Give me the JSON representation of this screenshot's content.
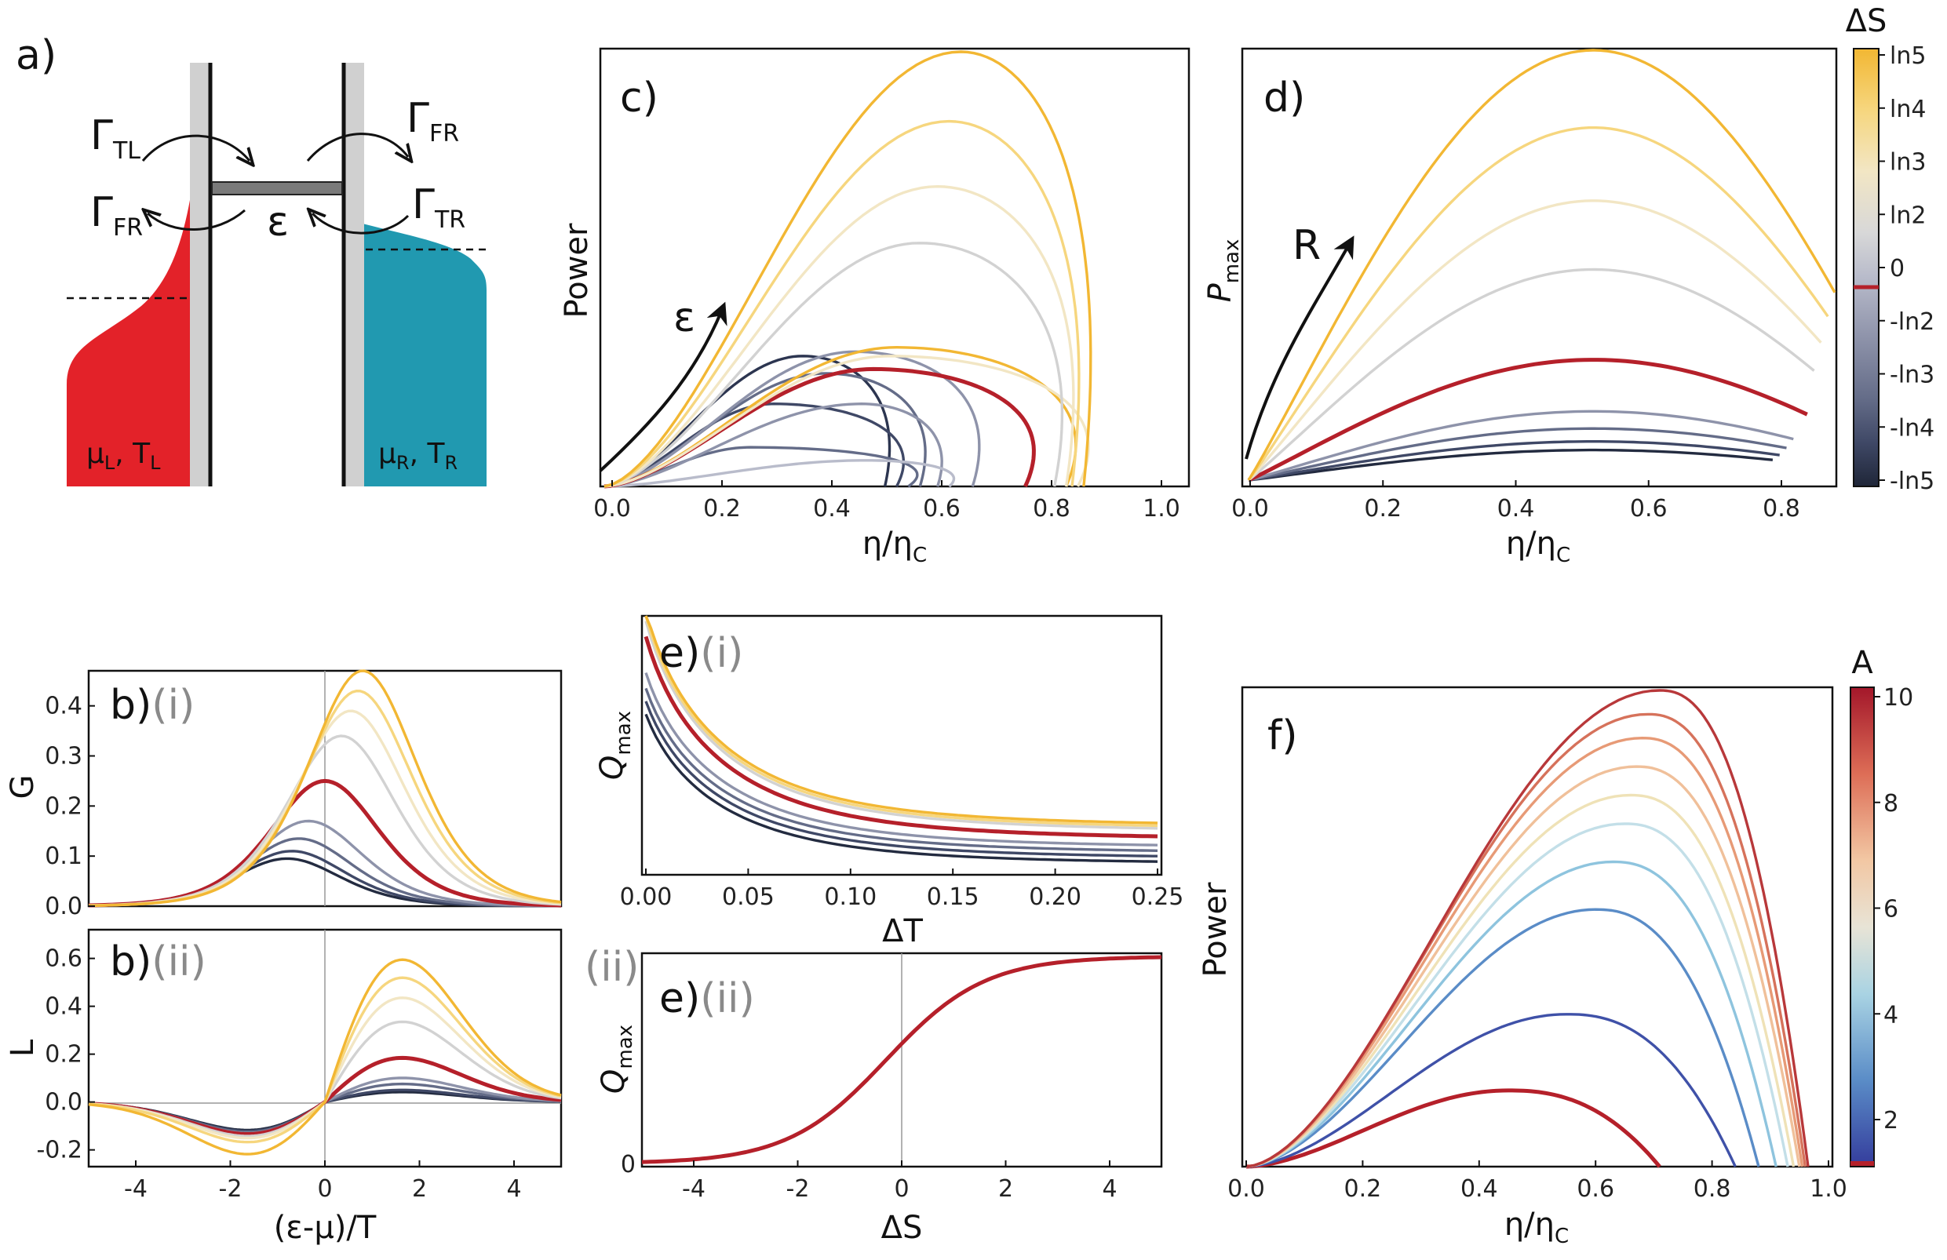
{
  "panels": {
    "a": {
      "label": "a)",
      "rates": {
        "gtl": "Γ",
        "gtl_sub": "TL",
        "gfr_top": "Γ",
        "gfr_top_sub": "FR",
        "gfr_left": "Γ",
        "gfr_left_sub": "FR",
        "gtr": "Γ",
        "gtr_sub": "TR"
      },
      "level": "ε",
      "left_lead": {
        "mu": "μ",
        "mu_sub": "L",
        "T": ", T",
        "T_sub": "L"
      },
      "right_lead": {
        "mu": "μ",
        "mu_sub": "R",
        "T": ", T",
        "T_sub": "R"
      },
      "colors": {
        "left": "#e32229",
        "right": "#2199b0"
      }
    },
    "c": {
      "label": "c)",
      "arrow_label": "ε"
    },
    "d": {
      "label": "d)",
      "arrow_label": "R"
    },
    "bi": {
      "label": "b)",
      "sub": "(i)"
    },
    "bii": {
      "label": "b)",
      "sub": "(ii)"
    },
    "ei": {
      "label": "e)",
      "sub": "(i)"
    },
    "eii": {
      "label": "e)",
      "sub": "(ii)",
      "left_tag": "(ii)"
    },
    "f": {
      "label": "f)"
    }
  },
  "colorbars": {
    "dS": {
      "title": "ΔS",
      "labels": [
        "ln5",
        "ln4",
        "ln3",
        "ln2",
        "0",
        "-ln2",
        "-ln3",
        "-ln4",
        "-ln5"
      ],
      "stops": [
        "#f2b733",
        "#f6d67e",
        "#f2e6c4",
        "#d2d2d2",
        "#b9bccb",
        "#8e93aa",
        "#646c88",
        "#3f4866",
        "#232b40"
      ],
      "marker_color": "#b5202a"
    },
    "A": {
      "title": "A",
      "labels": [
        "10",
        "8",
        "6",
        "4",
        "2"
      ],
      "stops": [
        "#b5202a",
        "#dd6d56",
        "#f2c7a3",
        "#d4e1e4",
        "#8ec4de",
        "#4b73b6",
        "#3a3f9e"
      ],
      "marker_color": "#b5202a"
    }
  },
  "chart_data": [
    {
      "id": "c",
      "type": "line",
      "xlabel": "η/η",
      "xlabel_sub": "C",
      "ylabel": "Power",
      "xlim": [
        0,
        1.0
      ],
      "x_ticks": [
        "0.0",
        "0.2",
        "0.4",
        "0.6",
        "0.8",
        "1.0"
      ],
      "y_ticks": [],
      "series": [
        {
          "color": "#2c3550",
          "apex": [
            0.34,
            0.3
          ],
          "end": [
            0.48,
            0.0
          ]
        },
        {
          "color": "#3f4866",
          "apex": [
            0.29,
            0.19
          ],
          "end": [
            0.5,
            0.0
          ]
        },
        {
          "color": "#646c88",
          "apex": [
            0.25,
            0.09
          ],
          "end": [
            0.52,
            0.0
          ]
        },
        {
          "color": "#646c88",
          "apex": [
            0.38,
            0.26
          ],
          "end": [
            0.54,
            0.0
          ]
        },
        {
          "color": "#8e93aa",
          "apex": [
            0.44,
            0.19
          ],
          "end": [
            0.57,
            0.0
          ]
        },
        {
          "color": "#8e93aa",
          "apex": [
            0.43,
            0.31
          ],
          "end": [
            0.63,
            0.0
          ]
        },
        {
          "color": "#b9bccb",
          "apex": [
            0.45,
            0.06
          ],
          "end": [
            0.59,
            0.0
          ]
        },
        {
          "color": "#b5202a",
          "apex": [
            0.46,
            0.27
          ],
          "end": [
            0.72,
            0.0
          ],
          "highlight": true
        },
        {
          "color": "#f2b733",
          "apex": [
            0.5,
            0.32
          ],
          "end": [
            0.79,
            0.0
          ]
        },
        {
          "color": "#f2e6c4",
          "apex": [
            0.49,
            0.3
          ],
          "end": [
            0.81,
            0.0
          ]
        },
        {
          "color": "#d2d2d2",
          "apex": [
            0.54,
            0.56
          ],
          "end": [
            0.77,
            0.0
          ]
        },
        {
          "color": "#f2e6c4",
          "apex": [
            0.57,
            0.69
          ],
          "end": [
            0.79,
            0.0
          ]
        },
        {
          "color": "#f6d67e",
          "apex": [
            0.59,
            0.84
          ],
          "end": [
            0.8,
            0.0
          ]
        },
        {
          "color": "#f2b733",
          "apex": [
            0.61,
            1.0
          ],
          "end": [
            0.82,
            0.0
          ]
        }
      ]
    },
    {
      "id": "d",
      "type": "line",
      "xlabel": "η/η",
      "xlabel_sub": "C",
      "ylabel": "P",
      "ylabel_sub": "max",
      "xlim": [
        0,
        0.85
      ],
      "x_ticks": [
        "0.0",
        "0.2",
        "0.4",
        "0.6",
        "0.8"
      ],
      "y_ticks": [],
      "series": [
        {
          "color": "#232b40",
          "apex": 0.07,
          "end_x": 0.76
        },
        {
          "color": "#3f4866",
          "apex": 0.09,
          "end_x": 0.77
        },
        {
          "color": "#646c88",
          "apex": 0.12,
          "end_x": 0.78
        },
        {
          "color": "#8e93aa",
          "apex": 0.16,
          "end_x": 0.79
        },
        {
          "color": "#b5202a",
          "apex": 0.28,
          "end_x": 0.81,
          "highlight": true
        },
        {
          "color": "#d2d2d2",
          "apex": 0.49,
          "end_x": 0.82
        },
        {
          "color": "#f2e6c4",
          "apex": 0.65,
          "end_x": 0.83
        },
        {
          "color": "#f6d67e",
          "apex": 0.82,
          "end_x": 0.84
        },
        {
          "color": "#f2b733",
          "apex": 1.0,
          "end_x": 0.85
        }
      ]
    },
    {
      "id": "bi",
      "type": "line",
      "xlabel": "",
      "ylabel": "G",
      "xlim": [
        -5,
        5
      ],
      "ylim": [
        0,
        0.47
      ],
      "y_ticks": [
        "0.0",
        "0.1",
        "0.2",
        "0.3",
        "0.4"
      ],
      "x_ticks": [],
      "series": [
        {
          "color": "#232b40",
          "peak": 0.095,
          "center": -0.8
        },
        {
          "color": "#3f4866",
          "peak": 0.11,
          "center": -0.7
        },
        {
          "color": "#646c88",
          "peak": 0.135,
          "center": -0.55
        },
        {
          "color": "#8e93aa",
          "peak": 0.17,
          "center": -0.35
        },
        {
          "color": "#b5202a",
          "peak": 0.25,
          "center": 0.0,
          "highlight": true
        },
        {
          "color": "#d2d2d2",
          "peak": 0.34,
          "center": 0.35
        },
        {
          "color": "#f2e6c4",
          "peak": 0.39,
          "center": 0.55
        },
        {
          "color": "#f6d67e",
          "peak": 0.43,
          "center": 0.7
        },
        {
          "color": "#f2b733",
          "peak": 0.47,
          "center": 0.8
        }
      ]
    },
    {
      "id": "bii",
      "type": "line",
      "xlabel": "(ε-μ)/T",
      "ylabel": "L",
      "xlim": [
        -5,
        5
      ],
      "ylim": [
        -0.27,
        0.72
      ],
      "x_ticks": [
        "-4",
        "-2",
        "0",
        "2",
        "4"
      ],
      "y_ticks": [
        "-0.2",
        "0.0",
        "0.2",
        "0.4",
        "0.6"
      ],
      "series": [
        {
          "color": "#232b40",
          "pos": 0.05,
          "neg": 0.14
        },
        {
          "color": "#3f4866",
          "pos": 0.06,
          "neg": 0.145
        },
        {
          "color": "#646c88",
          "pos": 0.09,
          "neg": 0.15
        },
        {
          "color": "#8e93aa",
          "pos": 0.12,
          "neg": 0.155
        },
        {
          "color": "#b5202a",
          "pos": 0.22,
          "neg": 0.16,
          "highlight": true
        },
        {
          "color": "#d2d2d2",
          "pos": 0.4,
          "neg": 0.17
        },
        {
          "color": "#f2e6c4",
          "pos": 0.52,
          "neg": 0.18
        },
        {
          "color": "#f6d67e",
          "pos": 0.62,
          "neg": 0.2
        },
        {
          "color": "#f2b733",
          "pos": 0.71,
          "neg": 0.26
        }
      ]
    },
    {
      "id": "ei",
      "type": "line",
      "xlabel": "ΔT",
      "ylabel": "Q",
      "ylabel_sub": "max",
      "xlim": [
        0,
        0.25
      ],
      "x_ticks": [
        "0.00",
        "0.05",
        "0.10",
        "0.15",
        "0.20",
        "0.25"
      ],
      "y_ticks": [],
      "series": [
        {
          "color": "#232b40",
          "start": 0.62,
          "tail": 0.03
        },
        {
          "color": "#3f4866",
          "start": 0.67,
          "tail": 0.05
        },
        {
          "color": "#646c88",
          "start": 0.72,
          "tail": 0.07
        },
        {
          "color": "#8e93aa",
          "start": 0.78,
          "tail": 0.09
        },
        {
          "color": "#b5202a",
          "start": 0.92,
          "tail": 0.12,
          "highlight": true
        },
        {
          "color": "#d2d2d2",
          "start": 0.98,
          "tail": 0.15
        },
        {
          "color": "#f6d67e",
          "start": 1.0,
          "tail": 0.16
        },
        {
          "color": "#f2b733",
          "start": 1.02,
          "tail": 0.17
        }
      ]
    },
    {
      "id": "eii",
      "type": "line",
      "xlabel": "ΔS",
      "ylabel": "Q",
      "ylabel_sub": "max",
      "xlim": [
        -5,
        5
      ],
      "x_ticks": [
        "-4",
        "-2",
        "0",
        "2",
        "4"
      ],
      "y_ticks": [
        "0"
      ],
      "series": [
        {
          "color": "#b5202a",
          "shape": "sigmoid"
        }
      ]
    },
    {
      "id": "f",
      "type": "line",
      "xlabel": "η/η",
      "xlabel_sub": "C",
      "ylabel": "Power",
      "xlim": [
        0,
        1.0
      ],
      "x_ticks": [
        "0.0",
        "0.2",
        "0.4",
        "0.6",
        "0.8",
        "1.0"
      ],
      "y_ticks": [],
      "series": [
        {
          "color": "#b5202a",
          "apex": [
            0.45,
            0.16
          ],
          "end": 0.71,
          "highlight": true
        },
        {
          "color": "#3f51a8",
          "apex": [
            0.55,
            0.32
          ],
          "end": 0.84
        },
        {
          "color": "#5a8cc7",
          "apex": [
            0.6,
            0.54
          ],
          "end": 0.88
        },
        {
          "color": "#8ec4de",
          "apex": [
            0.63,
            0.64
          ],
          "end": 0.91
        },
        {
          "color": "#c3dfe8",
          "apex": [
            0.65,
            0.72
          ],
          "end": 0.93
        },
        {
          "color": "#efe2b7",
          "apex": [
            0.66,
            0.78
          ],
          "end": 0.94
        },
        {
          "color": "#f0c09a",
          "apex": [
            0.67,
            0.84
          ],
          "end": 0.95
        },
        {
          "color": "#e79a76",
          "apex": [
            0.68,
            0.9
          ],
          "end": 0.955
        },
        {
          "color": "#d6725b",
          "apex": [
            0.69,
            0.95
          ],
          "end": 0.96
        },
        {
          "color": "#b8383a",
          "apex": [
            0.71,
            1.0
          ],
          "end": 0.965
        }
      ]
    }
  ]
}
